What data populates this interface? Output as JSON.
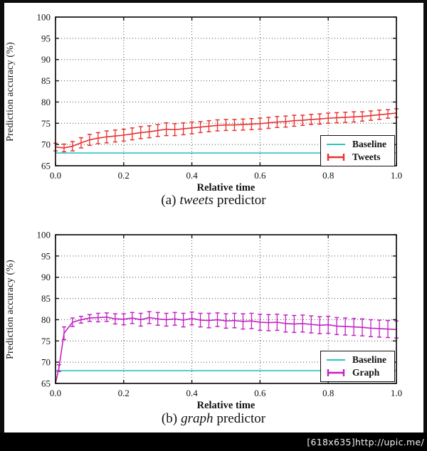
{
  "watermark": {
    "text": "[618x635]http://upic.me/"
  },
  "chart_data": [
    {
      "type": "line",
      "id": "tweets",
      "xlabel": "Relative time",
      "ylabel": "Prediction accuracy (%)",
      "caption": {
        "prefix": "(a)",
        "italic": "tweets",
        "suffix": "predictor"
      },
      "xlim": [
        0.0,
        1.0
      ],
      "ylim": [
        65,
        100
      ],
      "grid": true,
      "legend_position": "lower right",
      "x_tick_values": [
        0.0,
        0.2,
        0.4,
        0.6,
        0.8,
        1.0
      ],
      "x_tick_labels": [
        "0.0",
        "0.2",
        "0.4",
        "0.6",
        "0.8",
        "1.0"
      ],
      "y_tick_values": [
        65,
        70,
        75,
        80,
        85,
        90,
        95,
        100
      ],
      "y_tick_labels": [
        "65",
        "70",
        "75",
        "80",
        "85",
        "90",
        "95",
        "100"
      ],
      "series": [
        {
          "name": "Baseline",
          "type": "hline",
          "value": 68.0,
          "color": "#2fc2c6"
        },
        {
          "name": "Tweets",
          "type": "errorbar",
          "color": "#e93030",
          "x": [
            0.0,
            0.025,
            0.05,
            0.075,
            0.1,
            0.125,
            0.15,
            0.175,
            0.2,
            0.225,
            0.25,
            0.275,
            0.3,
            0.325,
            0.35,
            0.375,
            0.4,
            0.425,
            0.45,
            0.475,
            0.5,
            0.525,
            0.55,
            0.575,
            0.6,
            0.625,
            0.65,
            0.675,
            0.7,
            0.725,
            0.75,
            0.775,
            0.8,
            0.825,
            0.85,
            0.875,
            0.9,
            0.925,
            0.95,
            0.975,
            1.0
          ],
          "y": [
            69.4,
            69.2,
            69.6,
            70.4,
            71.1,
            71.5,
            71.8,
            72.0,
            72.2,
            72.5,
            72.8,
            73.0,
            73.3,
            73.6,
            73.5,
            73.7,
            73.9,
            74.1,
            74.3,
            74.5,
            74.6,
            74.6,
            74.7,
            74.8,
            74.9,
            75.1,
            75.3,
            75.4,
            75.6,
            75.7,
            75.9,
            76.0,
            76.2,
            76.3,
            76.4,
            76.5,
            76.6,
            76.8,
            77.0,
            77.2,
            77.4
          ],
          "yerr": [
            0.9,
            0.9,
            1.1,
            1.2,
            1.3,
            1.3,
            1.4,
            1.4,
            1.4,
            1.4,
            1.4,
            1.4,
            1.4,
            1.5,
            1.4,
            1.4,
            1.4,
            1.3,
            1.3,
            1.3,
            1.3,
            1.3,
            1.3,
            1.3,
            1.3,
            1.3,
            1.3,
            1.3,
            1.3,
            1.2,
            1.2,
            1.2,
            1.2,
            1.2,
            1.2,
            1.2,
            1.1,
            1.1,
            1.1,
            1.0,
            1.0
          ]
        }
      ]
    },
    {
      "type": "line",
      "id": "graph",
      "xlabel": "Relative time",
      "ylabel": "Prediction accuracy (%)",
      "caption": {
        "prefix": "(b)",
        "italic": "graph",
        "suffix": "predictor"
      },
      "xlim": [
        0.0,
        1.0
      ],
      "ylim": [
        65,
        100
      ],
      "grid": true,
      "legend_position": "lower right",
      "x_tick_values": [
        0.0,
        0.2,
        0.4,
        0.6,
        0.8,
        1.0
      ],
      "x_tick_labels": [
        "0.0",
        "0.2",
        "0.4",
        "0.6",
        "0.8",
        "1.0"
      ],
      "y_tick_values": [
        65,
        70,
        75,
        80,
        85,
        90,
        95,
        100
      ],
      "y_tick_labels": [
        "65",
        "70",
        "75",
        "80",
        "85",
        "90",
        "95",
        "100"
      ],
      "series": [
        {
          "name": "Baseline",
          "type": "hline",
          "value": 68.0,
          "color": "#2fc2c6"
        },
        {
          "name": "Graph",
          "type": "errorbar",
          "color": "#c320c3",
          "x": [
            0.0,
            0.01,
            0.025,
            0.05,
            0.075,
            0.1,
            0.125,
            0.15,
            0.175,
            0.2,
            0.225,
            0.25,
            0.275,
            0.3,
            0.325,
            0.35,
            0.375,
            0.4,
            0.425,
            0.45,
            0.475,
            0.5,
            0.525,
            0.55,
            0.575,
            0.6,
            0.625,
            0.65,
            0.675,
            0.7,
            0.725,
            0.75,
            0.775,
            0.8,
            0.825,
            0.85,
            0.875,
            0.9,
            0.925,
            0.95,
            0.975,
            1.0
          ],
          "y": [
            65.0,
            68.6,
            76.8,
            79.4,
            80.0,
            80.4,
            80.5,
            80.6,
            80.2,
            80.1,
            80.4,
            80.0,
            80.5,
            80.2,
            80.0,
            80.2,
            79.9,
            80.3,
            79.9,
            79.8,
            80.0,
            79.7,
            79.8,
            79.6,
            79.7,
            79.4,
            79.3,
            79.4,
            79.1,
            79.0,
            79.1,
            78.9,
            78.7,
            78.8,
            78.5,
            78.4,
            78.3,
            78.2,
            78.0,
            77.9,
            77.8,
            77.7
          ],
          "yerr": [
            0.0,
            0.8,
            1.5,
            1.0,
            0.8,
            0.8,
            1.0,
            1.0,
            1.2,
            1.3,
            1.3,
            1.5,
            1.4,
            1.5,
            1.5,
            1.5,
            1.6,
            1.5,
            1.6,
            1.7,
            1.6,
            1.7,
            1.7,
            1.8,
            1.8,
            1.9,
            1.9,
            1.9,
            2.0,
            2.0,
            2.0,
            2.0,
            2.0,
            2.0,
            2.0,
            2.0,
            2.0,
            2.0,
            2.0,
            2.0,
            2.0,
            2.0
          ]
        }
      ]
    }
  ]
}
